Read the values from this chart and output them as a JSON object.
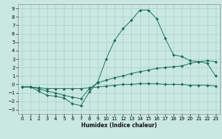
{
  "xlabel": "Humidex (Indice chaleur)",
  "bg_color": "#c9e8e1",
  "grid_color": "#a8cfc7",
  "line_color": "#1a6b5a",
  "xlim": [
    -0.5,
    23.5
  ],
  "ylim": [
    -3.5,
    9.5
  ],
  "xticks": [
    0,
    1,
    2,
    3,
    4,
    5,
    6,
    7,
    8,
    9,
    10,
    11,
    12,
    13,
    14,
    15,
    16,
    17,
    18,
    19,
    20,
    21,
    22,
    23
  ],
  "yticks": [
    -3,
    -2,
    -1,
    0,
    1,
    2,
    3,
    4,
    5,
    6,
    7,
    8,
    9
  ],
  "line_peaked_x": [
    0,
    1,
    2,
    3,
    4,
    5,
    6,
    7,
    8,
    9,
    10,
    11,
    12,
    13,
    14,
    15,
    16,
    17,
    18,
    19,
    20,
    21,
    22,
    23
  ],
  "line_peaked_y": [
    -0.3,
    -0.3,
    -0.8,
    -1.3,
    -1.4,
    -1.6,
    -2.3,
    -2.5,
    -0.9,
    0.3,
    3.0,
    5.2,
    6.6,
    7.6,
    8.8,
    8.8,
    7.8,
    5.5,
    3.5,
    3.3,
    2.8,
    2.7,
    2.5,
    1.0
  ],
  "line_upper_x": [
    0,
    1,
    2,
    3,
    4,
    5,
    6,
    7,
    8,
    9,
    10,
    11,
    12,
    13,
    14,
    15,
    16,
    17,
    18,
    19,
    20,
    21,
    22,
    23
  ],
  "line_upper_y": [
    -0.3,
    -0.3,
    -0.5,
    -0.8,
    -1.0,
    -1.3,
    -1.5,
    -1.7,
    -0.5,
    0.2,
    0.5,
    0.8,
    1.0,
    1.3,
    1.5,
    1.7,
    1.9,
    2.0,
    2.1,
    2.2,
    2.5,
    2.7,
    2.8,
    2.7
  ],
  "line_lower_x": [
    0,
    1,
    2,
    3,
    4,
    5,
    6,
    7,
    8,
    9,
    10,
    11,
    12,
    13,
    14,
    15,
    16,
    17,
    18,
    19,
    20,
    21,
    22,
    23
  ],
  "line_lower_y": [
    -0.3,
    -0.3,
    -0.4,
    -0.5,
    -0.5,
    -0.5,
    -0.5,
    -0.5,
    -0.4,
    -0.3,
    -0.2,
    -0.1,
    0.0,
    0.0,
    0.1,
    0.1,
    0.1,
    0.0,
    0.0,
    0.0,
    -0.1,
    -0.1,
    -0.1,
    -0.2
  ]
}
